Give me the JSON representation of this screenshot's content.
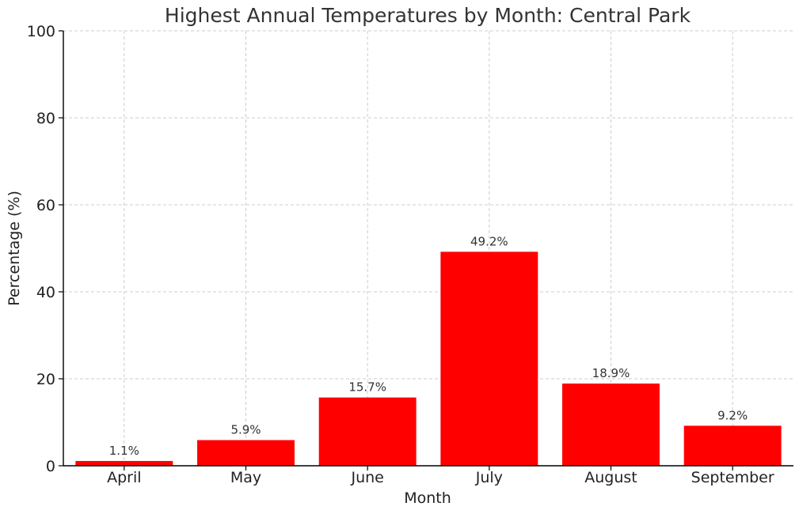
{
  "chart_data": {
    "type": "bar",
    "title": "Highest Annual Temperatures by Month: Central Park",
    "xlabel": "Month",
    "ylabel": "Percentage (%)",
    "categories": [
      "April",
      "May",
      "June",
      "July",
      "August",
      "September"
    ],
    "values": [
      1.1,
      5.9,
      15.7,
      49.2,
      18.9,
      9.2
    ],
    "data_labels": [
      "1.1%",
      "5.9%",
      "15.7%",
      "49.2%",
      "18.9%",
      "9.2%"
    ],
    "ylim": [
      0,
      100
    ],
    "yticks": [
      0,
      20,
      40,
      60,
      80,
      100
    ],
    "grid": true,
    "bar_color": "#ff0000"
  }
}
